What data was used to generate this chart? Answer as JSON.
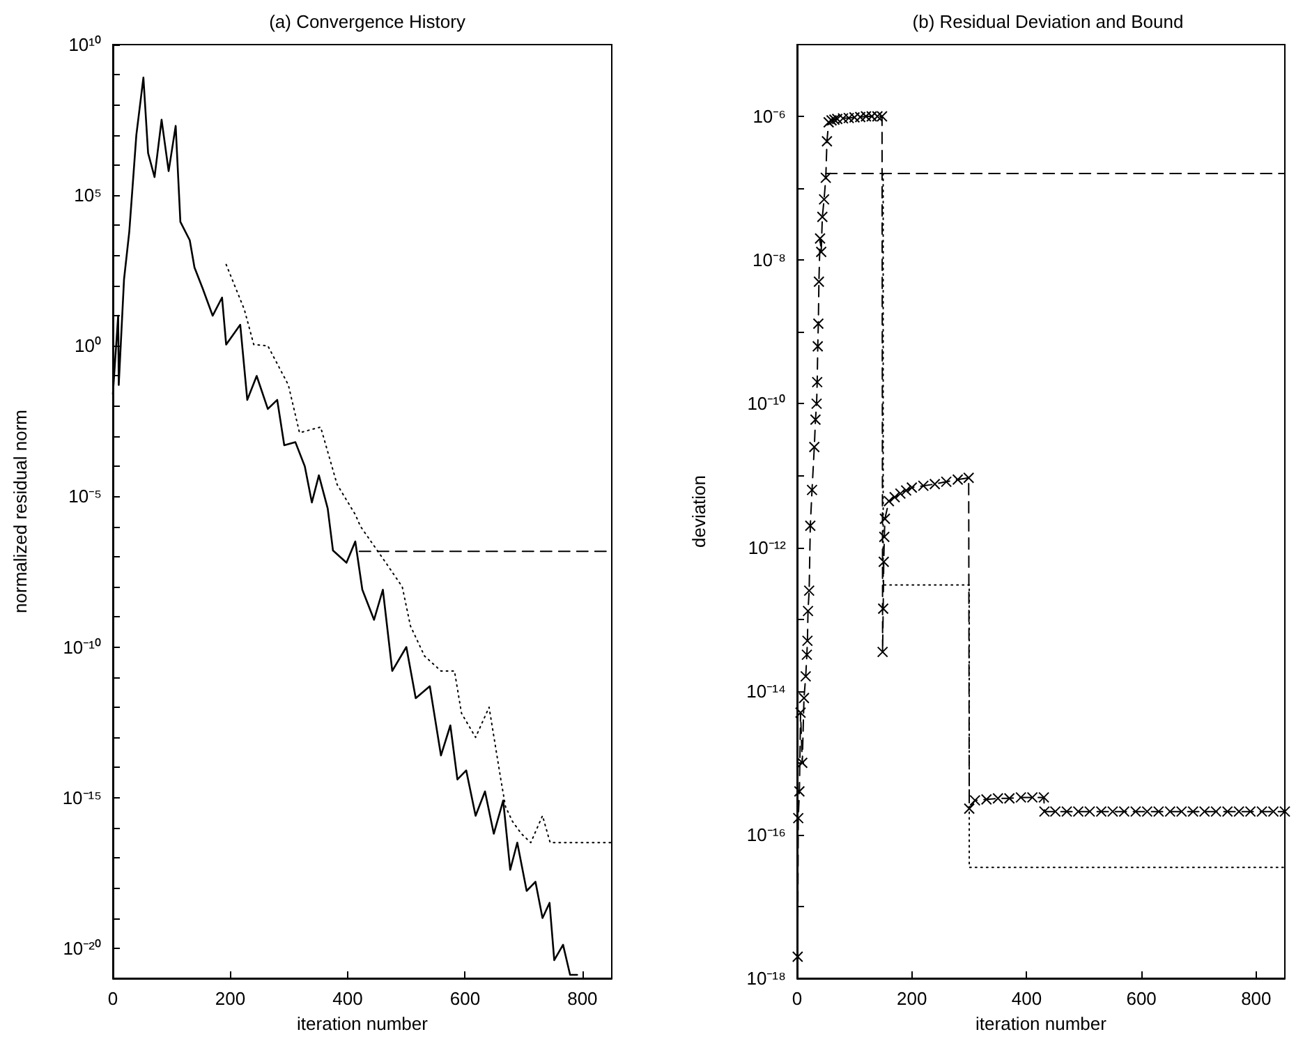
{
  "chart_data": [
    {
      "type": "line",
      "title": "(a) Convergence History",
      "xlabel": "iteration number",
      "ylabel": "normalized residual norm",
      "log": "y",
      "grid": false,
      "xlim": [
        0,
        850
      ],
      "xticks": [
        0,
        200,
        400,
        600,
        800
      ],
      "ylim": [
        1e-21,
        10000000000.0
      ],
      "yticks": [
        {
          "value": 1e-20,
          "label": "10⁻²⁰"
        },
        {
          "value": 1e-19,
          "label": null
        },
        {
          "value": 1e-18,
          "label": null
        },
        {
          "value": 1e-17,
          "label": null
        },
        {
          "value": 1e-16,
          "label": null
        },
        {
          "value": 1e-15,
          "label": "10⁻¹⁵"
        },
        {
          "value": 1e-14,
          "label": null
        },
        {
          "value": 1e-13,
          "label": null
        },
        {
          "value": 1e-12,
          "label": null
        },
        {
          "value": 1e-11,
          "label": null
        },
        {
          "value": 1e-10,
          "label": "10⁻¹⁰"
        },
        {
          "value": 1e-09,
          "label": null
        },
        {
          "value": 1e-08,
          "label": null
        },
        {
          "value": 1e-07,
          "label": null
        },
        {
          "value": 1e-06,
          "label": null
        },
        {
          "value": 1e-05,
          "label": "10⁻⁵"
        },
        {
          "value": 0.0001,
          "label": null
        },
        {
          "value": 0.001,
          "label": null
        },
        {
          "value": 0.01,
          "label": null
        },
        {
          "value": 0.1,
          "label": null
        },
        {
          "value": 1,
          "label": "10⁰"
        },
        {
          "value": 10,
          "label": null
        },
        {
          "value": 100,
          "label": null
        },
        {
          "value": 1000,
          "label": null
        },
        {
          "value": 10000,
          "label": null
        },
        {
          "value": 100000,
          "label": "10⁵"
        },
        {
          "value": 1000000.0,
          "label": null
        },
        {
          "value": 10000000.0,
          "label": null
        },
        {
          "value": 100000000.0,
          "label": null
        },
        {
          "value": 1000000000.0,
          "label": null
        },
        {
          "value": 10000000000.0,
          "label": "10¹⁰"
        }
      ],
      "series": [
        {
          "color": "#000000",
          "line_style": "solid",
          "marker": "none",
          "x": [
            0,
            9,
            10,
            19,
            28,
            40,
            52,
            60,
            71,
            83,
            95,
            107,
            115,
            131,
            139,
            153,
            170,
            186,
            193,
            217,
            229,
            245,
            264,
            280,
            292,
            311,
            327,
            339,
            351,
            366,
            375,
            398,
            413,
            425,
            445,
            460,
            476,
            500,
            516,
            540,
            559,
            575,
            587,
            602,
            618,
            634,
            649,
            665,
            677,
            689,
            705,
            720,
            732,
            744,
            752,
            767,
            779,
            791
          ],
          "values": [
            0.025,
            10,
            0.05,
            160,
            6300,
            10000000.0,
            800000000.0,
            2500000.0,
            400000.0,
            32000000.0,
            630000.0,
            20000000.0,
            13000.0,
            3200,
            400,
            80,
            10,
            40,
            1.1,
            5,
            0.016,
            0.1,
            0.008,
            0.016,
            0.0005,
            0.00063,
            0.0001,
            6.3e-06,
            5e-05,
            4e-06,
            1.6e-07,
            6.3e-08,
            3.2e-07,
            8e-09,
            8e-10,
            8e-09,
            1.6e-11,
            1e-10,
            2e-12,
            5e-12,
            2.5e-14,
            2.5e-13,
            4e-15,
            8e-15,
            2.5e-16,
            1.6e-15,
            6.3e-17,
            8e-16,
            4e-18,
            3.2e-17,
            8e-19,
            1.6e-18,
            1e-19,
            3.2e-19,
            4e-21,
            1.3e-20,
            1.3e-21,
            1.3e-21
          ]
        },
        {
          "color": "#000000",
          "line_style": "dotted",
          "marker": "none",
          "x": [
            193,
            224,
            240,
            264,
            299,
            318,
            354,
            382,
            413,
            422,
            465,
            493,
            507,
            531,
            559,
            582,
            594,
            618,
            641,
            661,
            669,
            681,
            696,
            712,
            732,
            745,
            850
          ],
          "values": [
            500,
            16,
            1.1,
            1,
            0.05,
            0.0013,
            0.002,
            2.5e-05,
            2.5e-06,
            1e-06,
            6.3e-08,
            1e-08,
            5e-10,
            5e-11,
            1.6e-11,
            1.6e-11,
            6.3e-13,
            1e-13,
            1e-12,
            4e-15,
            5e-16,
            1.6e-16,
            6.3e-17,
            3.2e-17,
            2.5e-16,
            3.2e-17,
            3.2e-17
          ]
        },
        {
          "color": "#000000",
          "line_style": "dashed",
          "marker": "none",
          "x": [
            420,
            850
          ],
          "values": [
            1.5e-07,
            1.5e-07
          ]
        }
      ]
    },
    {
      "type": "line",
      "title": "(b) Residual Deviation and Bound",
      "xlabel": "iteration number",
      "ylabel": "deviation",
      "log": "y",
      "grid": false,
      "xlim": [
        0,
        850
      ],
      "xticks": [
        0,
        200,
        400,
        600,
        800
      ],
      "ylim": [
        1e-18,
        1e-05
      ],
      "yticks": [
        {
          "value": 1e-18,
          "label": "10⁻¹⁸"
        },
        {
          "value": 1e-17,
          "label": null
        },
        {
          "value": 1e-16,
          "label": "10⁻¹⁶"
        },
        {
          "value": 1e-15,
          "label": null
        },
        {
          "value": 1e-14,
          "label": "10⁻¹⁴"
        },
        {
          "value": 1e-13,
          "label": null
        },
        {
          "value": 1e-12,
          "label": "10⁻¹²"
        },
        {
          "value": 1e-11,
          "label": null
        },
        {
          "value": 1e-10,
          "label": "10⁻¹⁰"
        },
        {
          "value": 1e-09,
          "label": null
        },
        {
          "value": 1e-08,
          "label": "10⁻⁸"
        },
        {
          "value": 1e-07,
          "label": null
        },
        {
          "value": 1e-06,
          "label": "10⁻⁶"
        }
      ],
      "series": [
        {
          "color": "#000000",
          "line_style": "dashed",
          "marker": "cross",
          "x": [
            1,
            2,
            4,
            6,
            9,
            12,
            15,
            17,
            18,
            19,
            21,
            23,
            26,
            30,
            32,
            34,
            35,
            36,
            37,
            38,
            40,
            42,
            44,
            47,
            50,
            52,
            55,
            60,
            65,
            70,
            80,
            90,
            100,
            110,
            120,
            130,
            140,
            148,
            149,
            150,
            151,
            152,
            153,
            160,
            170,
            180,
            190,
            200,
            220,
            240,
            260,
            280,
            299,
            300,
            310,
            330,
            350,
            370,
            390,
            410,
            430,
            431,
            450,
            470,
            490,
            510,
            530,
            550,
            570,
            590,
            610,
            630,
            650,
            670,
            690,
            710,
            730,
            750,
            770,
            790,
            810,
            830,
            850
          ],
          "values": [
            2e-18,
            1.7e-16,
            4e-16,
            5e-15,
            1e-15,
            8e-15,
            1.6e-14,
            3.2e-14,
            5e-14,
            1.3e-13,
            2.5e-13,
            2e-12,
            6.3e-12,
            2.5e-11,
            6e-11,
            1e-10,
            2e-10,
            6.3e-10,
            1.3e-09,
            5e-09,
            2e-08,
            1.3e-08,
            4e-08,
            7e-08,
            1.4e-07,
            4.5e-07,
            8.3e-07,
            8.8e-07,
            9e-07,
            9.2e-07,
            9.4e-07,
            9.5e-07,
            9.7e-07,
            9.8e-07,
            1e-06,
            1e-06,
            1e-06,
            1e-06,
            3.5e-14,
            1.4e-13,
            6.3e-13,
            1.4e-12,
            2.5e-12,
            4.4e-12,
            5e-12,
            5.6e-12,
            6.2e-12,
            6.8e-12,
            7.2e-12,
            7.6e-12,
            8.2e-12,
            8.8e-12,
            9.3e-12,
            2.3e-16,
            3e-16,
            3.1e-16,
            3.2e-16,
            3.2e-16,
            3.3e-16,
            3.3e-16,
            3.3e-16,
            2.1e-16,
            2.1e-16,
            2.1e-16,
            2.1e-16,
            2.1e-16,
            2.1e-16,
            2.1e-16,
            2.1e-16,
            2.1e-16,
            2.1e-16,
            2.1e-16,
            2.1e-16,
            2.1e-16,
            2.1e-16,
            2.1e-16,
            2.1e-16,
            2.1e-16,
            2.1e-16,
            2.1e-16,
            2.1e-16,
            2.1e-16,
            2.1e-16
          ]
        },
        {
          "color": "#000000",
          "line_style": "dashed",
          "marker": "none",
          "x": [
            50,
            850
          ],
          "values": [
            1.6e-07,
            1.6e-07
          ]
        },
        {
          "color": "#000000",
          "line_style": "dotted",
          "marker": "none",
          "x": [
            150,
            150,
            300,
            300,
            850
          ],
          "values": [
            1.6e-07,
            3e-13,
            3e-13,
            3.5e-17,
            3.5e-17
          ]
        }
      ]
    }
  ]
}
